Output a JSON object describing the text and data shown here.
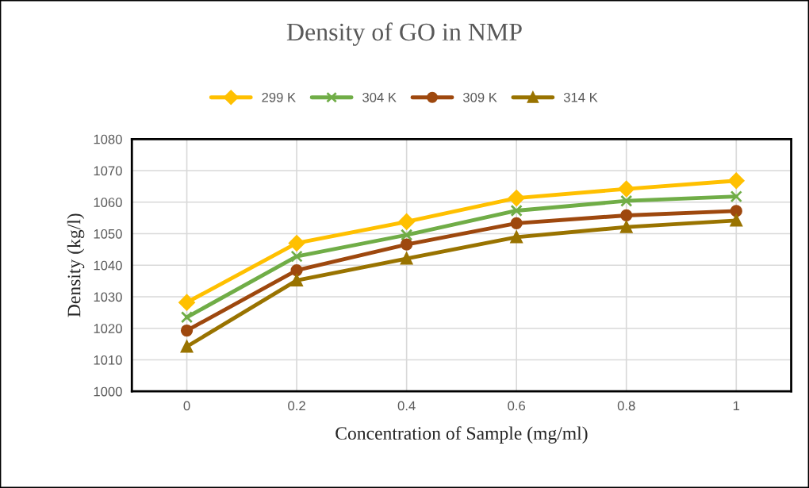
{
  "chart_data": {
    "type": "line",
    "title": "Density of GO in NMP",
    "xlabel": "Concentration of Sample (mg/ml)",
    "ylabel": "Density (kg/l)",
    "categories": [
      "0",
      "0.2",
      "0.4",
      "0.6",
      "0.8",
      "1"
    ],
    "series": [
      {
        "name": "299 K",
        "color": "#ffc000",
        "marker": "diamond",
        "values": [
          1028.2,
          1047.0,
          1053.8,
          1061.3,
          1064.2,
          1066.8
        ]
      },
      {
        "name": "304 K",
        "color": "#70ad47",
        "marker": "cross",
        "values": [
          1023.5,
          1042.8,
          1049.6,
          1057.3,
          1060.4,
          1061.8
        ]
      },
      {
        "name": "309 K",
        "color": "#9e480e",
        "marker": "circle",
        "values": [
          1019.3,
          1038.4,
          1046.6,
          1053.3,
          1055.8,
          1057.2
        ]
      },
      {
        "name": "314 K",
        "color": "#997300",
        "marker": "triangle",
        "values": [
          1014.2,
          1035.2,
          1042.1,
          1048.9,
          1052.1,
          1054.2
        ]
      }
    ],
    "ylim": [
      1000,
      1080
    ],
    "yticks": [
      1000,
      1010,
      1020,
      1030,
      1040,
      1050,
      1060,
      1070,
      1080
    ],
    "grid": true,
    "legend": "top",
    "line_style": "solid"
  }
}
